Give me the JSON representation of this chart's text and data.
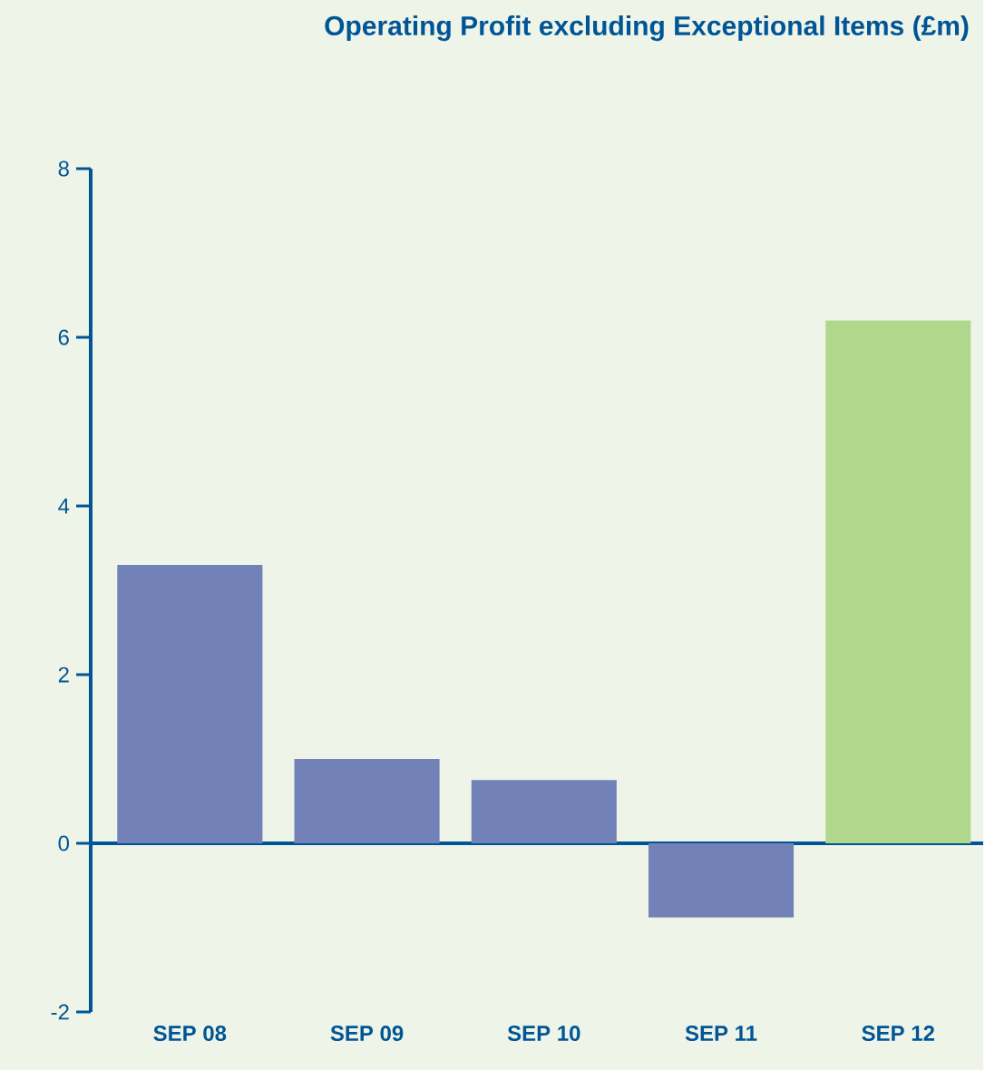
{
  "chart_data": {
    "type": "bar",
    "title": "Operating Profit excluding Exceptional Items (£m)",
    "categories": [
      "SEP 08",
      "SEP 09",
      "SEP 10",
      "SEP 11",
      "SEP 12"
    ],
    "values": [
      3.3,
      1.0,
      0.75,
      -0.88,
      6.2
    ],
    "colors": [
      "#7282b8",
      "#7282b8",
      "#7282b8",
      "#7282b8",
      "#b1d78d"
    ],
    "ylim": [
      -2,
      8
    ],
    "yticks": [
      -2,
      0,
      2,
      4,
      6,
      8
    ],
    "grid": false,
    "ref_lines": [
      {
        "axis": "y",
        "value": 0,
        "color": "#005596"
      }
    ]
  }
}
